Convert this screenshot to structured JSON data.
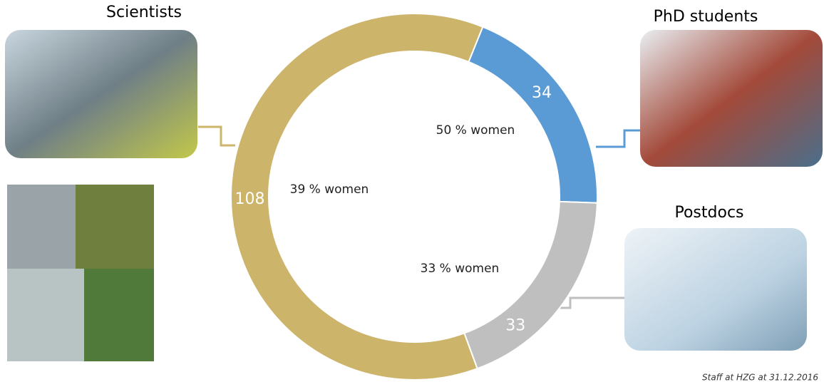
{
  "chart_data": {
    "type": "donut",
    "categories": [
      "PhD students",
      "Postdocs",
      "Scientists"
    ],
    "values": [
      34,
      33,
      108
    ],
    "colors": [
      "#5b9bd5",
      "#bfbfbf",
      "#cdb46b"
    ],
    "annotations": [
      "50 % women",
      "33 % women",
      "39 % women"
    ],
    "footnote": "Staff at HZG at 31.12.2016"
  }
}
